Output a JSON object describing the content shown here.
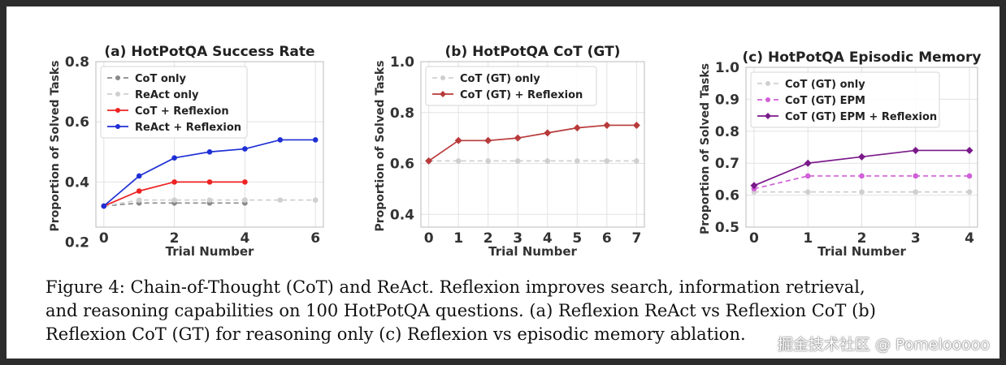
{
  "chart_data": [
    {
      "type": "line",
      "title": "(a) HotPotQA Success Rate",
      "xlabel": "Trial Number",
      "ylabel": "Proportion of Solved Tasks",
      "xlim": [
        0,
        6
      ],
      "ylim": [
        0.25,
        0.8
      ],
      "xticks": [
        0,
        2,
        4,
        6
      ],
      "yticks": [
        0.2,
        0.4,
        0.6,
        0.8
      ],
      "grid": true,
      "legend": "top-left",
      "series": [
        {
          "name": "CoT only",
          "color": "#8a8a8a",
          "dash": true,
          "marker": "circle",
          "x": [
            0,
            1,
            2,
            3,
            4
          ],
          "values": [
            0.32,
            0.33,
            0.33,
            0.33,
            0.33
          ]
        },
        {
          "name": "ReAct only",
          "color": "#cfcfcf",
          "dash": true,
          "marker": "circle",
          "x": [
            0,
            1,
            2,
            3,
            4,
            5,
            6
          ],
          "values": [
            0.32,
            0.34,
            0.34,
            0.34,
            0.34,
            0.34,
            0.34
          ]
        },
        {
          "name": "CoT + Reflexion",
          "color": "#ee2222",
          "dash": false,
          "marker": "circle",
          "x": [
            0,
            1,
            2,
            3,
            4
          ],
          "values": [
            0.32,
            0.37,
            0.4,
            0.4,
            0.4
          ]
        },
        {
          "name": "ReAct + Reflexion",
          "color": "#1f2fd6",
          "dash": false,
          "marker": "circle",
          "x": [
            0,
            1,
            2,
            3,
            4,
            5,
            6
          ],
          "values": [
            0.32,
            0.42,
            0.48,
            0.5,
            0.51,
            0.54,
            0.54
          ]
        }
      ]
    },
    {
      "type": "line",
      "title": "(b) HotPotQA CoT (GT)",
      "xlabel": "Trial Number",
      "ylabel": "Proportion of Solved Tasks",
      "xlim": [
        0,
        7
      ],
      "ylim": [
        0.35,
        1.0
      ],
      "xticks": [
        0,
        1,
        2,
        3,
        4,
        5,
        6,
        7
      ],
      "yticks": [
        0.4,
        0.6,
        0.8,
        1.0
      ],
      "grid": true,
      "legend": "top-left",
      "series": [
        {
          "name": "CoT (GT) only",
          "color": "#cfcfcf",
          "dash": true,
          "marker": "circle",
          "x": [
            0,
            1,
            2,
            3,
            4,
            5,
            6,
            7
          ],
          "values": [
            0.61,
            0.61,
            0.61,
            0.61,
            0.61,
            0.61,
            0.61,
            0.61
          ]
        },
        {
          "name": "CoT (GT) + Reflexion",
          "color": "#b83a3a",
          "dash": false,
          "marker": "diamond",
          "x": [
            0,
            1,
            2,
            3,
            4,
            5,
            6,
            7
          ],
          "values": [
            0.61,
            0.69,
            0.69,
            0.7,
            0.72,
            0.74,
            0.75,
            0.75
          ]
        }
      ]
    },
    {
      "type": "line",
      "title": "(c) HotPotQA Episodic Memory",
      "xlabel": "Trial Number",
      "ylabel": "Proportion of Solved Tasks",
      "xlim": [
        0,
        4
      ],
      "ylim": [
        0.5,
        1.0
      ],
      "xticks": [
        0,
        1,
        2,
        3,
        4
      ],
      "yticks": [
        0.5,
        0.6,
        0.7,
        0.8,
        0.9,
        1.0
      ],
      "grid": true,
      "legend": "top-left",
      "series": [
        {
          "name": "CoT (GT) only",
          "color": "#cfcfcf",
          "dash": true,
          "marker": "circle",
          "x": [
            0,
            1,
            2,
            3,
            4
          ],
          "values": [
            0.61,
            0.61,
            0.61,
            0.61,
            0.61
          ]
        },
        {
          "name": "CoT (GT) EPM",
          "color": "#d15fd8",
          "dash": true,
          "marker": "circle",
          "x": [
            0,
            1,
            2,
            3,
            4
          ],
          "values": [
            0.62,
            0.66,
            0.66,
            0.66,
            0.66
          ]
        },
        {
          "name": "CoT (GT) EPM + Reflexion",
          "color": "#7a1a8a",
          "dash": false,
          "marker": "diamond",
          "x": [
            0,
            1,
            2,
            3,
            4
          ],
          "values": [
            0.63,
            0.7,
            0.72,
            0.74,
            0.74
          ]
        }
      ]
    }
  ],
  "caption": {
    "line1": "Figure 4: Chain-of-Thought (CoT) and ReAct. Reflexion improves search, information retrieval,",
    "line2": "and reasoning capabilities on 100 HotPotQA questions. (a) Reflexion ReAct vs Reflexion CoT (b)",
    "line3": "Reflexion CoT (GT) for reasoning only (c) Reflexion vs episodic memory ablation."
  },
  "watermark": "掘金技术社区 @ Pomelooooo"
}
